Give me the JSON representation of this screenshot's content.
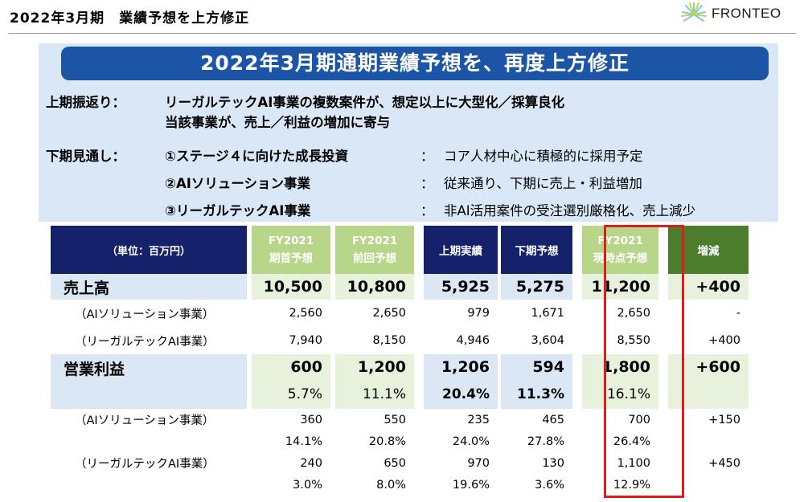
{
  "header": {
    "title": "2022年3月期　業績予想を上方修正",
    "logo_text": "FRONTEO"
  },
  "summary": {
    "banner": "2022年3月期通期業績予想を、再度上方修正",
    "h1_label": "上期振返り：",
    "h1_line1": "リーガルテックAI事業の複数案件が、想定以上に大型化／採算良化",
    "h1_line2": "当該事業が、売上／利益の増加に寄与",
    "h2_label": "下期見通し：",
    "items": [
      {
        "name": "①ステージ４に向けた成長投資",
        "sep": "：",
        "desc": "コア人材中心に積極的に採用予定"
      },
      {
        "name": "②AIソリューション事業",
        "sep": "：",
        "desc": "従来通り、下期に売上・利益増加"
      },
      {
        "name": "③リーガルテックAI事業",
        "sep": "：",
        "desc": "非AI活用案件の受注選別厳格化、売上減少"
      }
    ]
  },
  "table": {
    "unit_header": "（単位：百万円）",
    "headers": {
      "initial": {
        "line1": "FY2021",
        "line2": "期首予想"
      },
      "previous": {
        "line1": "FY2021",
        "line2": "前回予想"
      },
      "h1_actual": "上期実績",
      "h2_forecast": "下期予想",
      "current": {
        "line1": "FY2021",
        "line2": "現時点予想"
      },
      "change": "増減"
    },
    "sales": {
      "label": "売上高",
      "values": [
        "10,500",
        "10,800",
        "5,925",
        "5,275",
        "11,200",
        "+400"
      ],
      "ai_label": "（AIソリューション事業）",
      "ai_values": [
        "2,560",
        "2,650",
        "979",
        "1,671",
        "2,650",
        "-"
      ],
      "legal_label": "（リーガルテックAI事業）",
      "legal_values": [
        "7,940",
        "8,150",
        "4,946",
        "3,604",
        "8,550",
        "+400"
      ]
    },
    "op_profit": {
      "label": "営業利益",
      "values": [
        "600",
        "1,200",
        "1,206",
        "594",
        "1,800",
        "+600"
      ],
      "margins": [
        "5.7%",
        "11.1%",
        "20.4%",
        "11.3%",
        "16.1%"
      ],
      "ai_label": "（AIソリューション事業）",
      "ai_values": [
        "360",
        "550",
        "235",
        "465",
        "700",
        "+150"
      ],
      "ai_margins": [
        "14.1%",
        "20.8%",
        "24.0%",
        "27.8%",
        "26.4%"
      ],
      "legal_label": "（リーガルテックAI事業）",
      "legal_values": [
        "240",
        "650",
        "970",
        "130",
        "1,100",
        "+450"
      ],
      "legal_margins": [
        "3.0%",
        "8.0%",
        "19.6%",
        "3.6%",
        "12.9%"
      ]
    }
  },
  "colors": {
    "navy": "#16216b",
    "banner_blue": "#1c55a6",
    "light_green": "#b8d68a",
    "dark_green": "#4c7d2c",
    "highlight_red": "#e21c1c"
  }
}
